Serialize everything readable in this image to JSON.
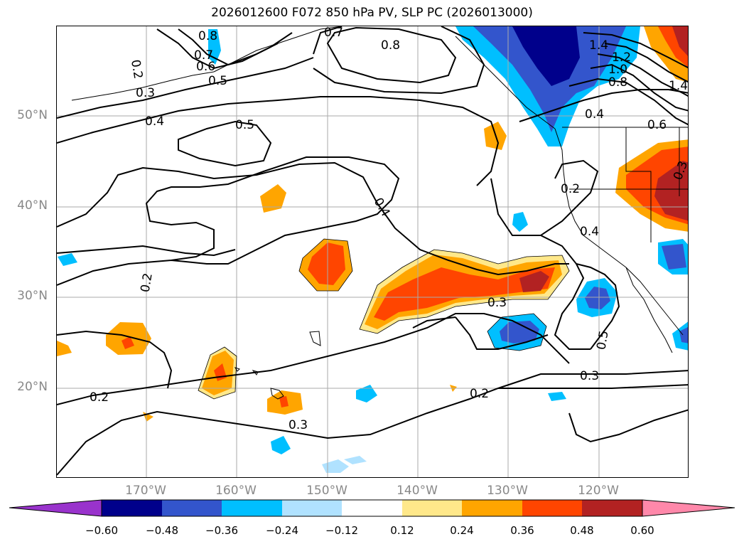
{
  "title": "2026012600 F072 850 hPa PV, SLP PC (2026013000)",
  "lat_labels": [
    {
      "lat": 50,
      "text": "50°N"
    },
    {
      "lat": 40,
      "text": "40°N"
    },
    {
      "lat": 30,
      "text": "30°N"
    },
    {
      "lat": 20,
      "text": "20°N"
    }
  ],
  "lon_labels": [
    {
      "lon": -170,
      "text": "170°W"
    },
    {
      "lon": -160,
      "text": "160°W"
    },
    {
      "lon": -150,
      "text": "150°W"
    },
    {
      "lon": -140,
      "text": "140°W"
    },
    {
      "lon": -130,
      "text": "130°W"
    },
    {
      "lon": -120,
      "text": "120°W"
    }
  ],
  "map_extent": {
    "lon_min": -180,
    "lon_max": -110,
    "lat_min": 10,
    "lat_max": 60
  },
  "contour_labels": [
    "0.8",
    "0.7",
    "0.6",
    "0.5",
    "0.2",
    "0.3",
    "0.4",
    "0.5",
    "0.8",
    "0.7",
    "1.4",
    "1.2",
    "1.0",
    "0.8",
    "0.4",
    "0.6",
    "1.4",
    "0.3",
    "0.2",
    "0.4",
    "0.4",
    "0.2",
    "0.3",
    "0.5",
    "0.3",
    "0.2",
    "0.3",
    "0.2"
  ],
  "colorbar": {
    "labels": [
      "−0.60",
      "−0.48",
      "−0.36",
      "−0.24",
      "−0.12",
      "0.12",
      "0.24",
      "0.36",
      "0.48",
      "0.60"
    ],
    "colors": [
      "#9933cc",
      "#00008b",
      "#3355cc",
      "#00bfff",
      "#b0e2ff",
      "#ffffff",
      "#ffe88a",
      "#ffa500",
      "#ff4500",
      "#b22222",
      "#ff88aa"
    ]
  }
}
